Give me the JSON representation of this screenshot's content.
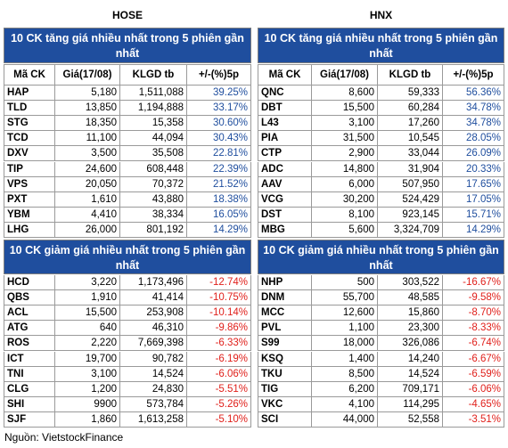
{
  "columns": [
    "Mã CK",
    "Giá(17/08)",
    "KLGD tb",
    "+/-(%)5p"
  ],
  "source": "Nguồn: VietstockFinance",
  "exchanges": [
    {
      "name": "HOSE",
      "panels": [
        {
          "title": "10 CK tăng giá nhiều nhất trong 5 phiên gần nhất",
          "rows": [
            [
              "HAP",
              "5,180",
              "1,511,088",
              "39.25%"
            ],
            [
              "TLD",
              "13,850",
              "1,194,888",
              "33.17%"
            ],
            [
              "STG",
              "18,350",
              "15,358",
              "30.60%"
            ],
            [
              "TCD",
              "11,100",
              "44,094",
              "30.43%"
            ],
            [
              "DXV",
              "3,500",
              "35,508",
              "22.81%"
            ],
            [
              "TIP",
              "24,600",
              "608,448",
              "22.39%"
            ],
            [
              "VPS",
              "20,050",
              "70,372",
              "21.52%"
            ],
            [
              "PXT",
              "1,610",
              "43,880",
              "18.38%"
            ],
            [
              "YBM",
              "4,410",
              "38,334",
              "16.05%"
            ],
            [
              "LHG",
              "26,000",
              "801,192",
              "14.29%"
            ]
          ]
        },
        {
          "title": "10 CK giảm giá nhiều nhất trong 5 phiên gần nhất",
          "rows": [
            [
              "HCD",
              "3,220",
              "1,173,496",
              "-12.74%"
            ],
            [
              "QBS",
              "1,910",
              "41,414",
              "-10.75%"
            ],
            [
              "ACL",
              "15,500",
              "253,908",
              "-10.14%"
            ],
            [
              "ATG",
              "640",
              "46,310",
              "-9.86%"
            ],
            [
              "ROS",
              "2,220",
              "7,669,398",
              "-6.33%"
            ],
            [
              "ICT",
              "19,700",
              "90,782",
              "-6.19%"
            ],
            [
              "TNI",
              "3,100",
              "14,524",
              "-6.06%"
            ],
            [
              "CLG",
              "1,200",
              "24,830",
              "-5.51%"
            ],
            [
              "SHI",
              "9900",
              "573,784",
              "-5.26%"
            ],
            [
              "SJF",
              "1,860",
              "1,613,258",
              "-5.10%"
            ]
          ]
        }
      ]
    },
    {
      "name": "HNX",
      "panels": [
        {
          "title": "10 CK tăng giá nhiều nhất trong 5 phiên gần nhất",
          "rows": [
            [
              "QNC",
              "8,600",
              "59,333",
              "56.36%"
            ],
            [
              "DBT",
              "15,500",
              "60,284",
              "34.78%"
            ],
            [
              "L43",
              "3,100",
              "17,260",
              "34.78%"
            ],
            [
              "PIA",
              "31,500",
              "10,545",
              "28.05%"
            ],
            [
              "CTP",
              "2,900",
              "33,044",
              "26.09%"
            ],
            [
              "ADC",
              "14,800",
              "31,904",
              "20.33%"
            ],
            [
              "AAV",
              "6,000",
              "507,950",
              "17.65%"
            ],
            [
              "VCG",
              "30,200",
              "524,429",
              "17.05%"
            ],
            [
              "DST",
              "8,100",
              "923,145",
              "15.71%"
            ],
            [
              "MBG",
              "5,600",
              "3,324,709",
              "14.29%"
            ]
          ]
        },
        {
          "title": "10 CK giảm giá nhiều nhất trong 5 phiên gần nhất",
          "rows": [
            [
              "NHP",
              "500",
              "303,522",
              "-16.67%"
            ],
            [
              "DNM",
              "55,700",
              "48,585",
              "-9.58%"
            ],
            [
              "MCC",
              "12,600",
              "15,860",
              "-8.70%"
            ],
            [
              "PVL",
              "1,100",
              "23,300",
              "-8.33%"
            ],
            [
              "S99",
              "18,000",
              "326,086",
              "-6.74%"
            ],
            [
              "KSQ",
              "1,400",
              "14,240",
              "-6.67%"
            ],
            [
              "TKU",
              "8,500",
              "14,524",
              "-6.59%"
            ],
            [
              "TIG",
              "6,200",
              "709,171",
              "-6.06%"
            ],
            [
              "VKC",
              "4,100",
              "114,295",
              "-4.65%"
            ],
            [
              "SCI",
              "44,000",
              "52,558",
              "-3.51%"
            ]
          ]
        }
      ]
    }
  ]
}
